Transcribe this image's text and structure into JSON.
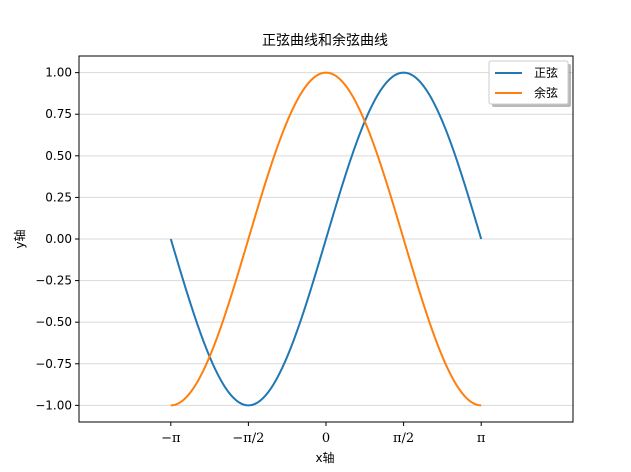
{
  "chart_data": {
    "type": "line",
    "title": "正弦曲线和余弦曲线",
    "xlabel": "x轴",
    "ylabel": "y轴",
    "xlim": [
      -5.0,
      5.0
    ],
    "ylim": [
      -1.1,
      1.1
    ],
    "grid": {
      "y": true,
      "x": false
    },
    "legend": {
      "placement": "top-right"
    },
    "x_ticks": [
      {
        "value": -3.141592653589793,
        "label": "−π"
      },
      {
        "value": -1.5707963267948966,
        "label": "−π/2"
      },
      {
        "value": 0,
        "label": "0"
      },
      {
        "value": 1.5707963267948966,
        "label": "π/2"
      },
      {
        "value": 3.141592653589793,
        "label": "π"
      }
    ],
    "y_ticks": [
      {
        "value": 1.0,
        "label": "1.00"
      },
      {
        "value": 0.75,
        "label": "0.75"
      },
      {
        "value": 0.5,
        "label": "0.50"
      },
      {
        "value": 0.25,
        "label": "0.25"
      },
      {
        "value": 0.0,
        "label": "0.00"
      },
      {
        "value": -0.25,
        "label": "−0.25"
      },
      {
        "value": -0.5,
        "label": "−0.50"
      },
      {
        "value": -0.75,
        "label": "−0.75"
      },
      {
        "value": -1.0,
        "label": "−1.00"
      }
    ],
    "series": [
      {
        "name": "正弦",
        "color": "#1f77b4",
        "function": "sin",
        "x_range": [
          -3.141592653589793,
          3.141592653589793
        ],
        "points": [
          [
            -3.1416,
            0.0
          ],
          [
            -2.618,
            -0.5
          ],
          [
            -2.0944,
            -0.866
          ],
          [
            -1.5708,
            -1.0
          ],
          [
            -1.0472,
            -0.866
          ],
          [
            -0.5236,
            -0.5
          ],
          [
            0.0,
            0.0
          ],
          [
            0.5236,
            0.5
          ],
          [
            1.0472,
            0.866
          ],
          [
            1.5708,
            1.0
          ],
          [
            2.0944,
            0.866
          ],
          [
            2.618,
            0.5
          ],
          [
            3.1416,
            0.0
          ]
        ]
      },
      {
        "name": "余弦",
        "color": "#ff7f0e",
        "function": "cos",
        "x_range": [
          -3.141592653589793,
          3.141592653589793
        ],
        "points": [
          [
            -3.1416,
            -1.0
          ],
          [
            -2.618,
            -0.866
          ],
          [
            -2.0944,
            -0.5
          ],
          [
            -1.5708,
            0.0
          ],
          [
            -1.0472,
            0.5
          ],
          [
            -0.5236,
            0.866
          ],
          [
            0.0,
            1.0
          ],
          [
            0.5236,
            0.866
          ],
          [
            1.0472,
            0.5
          ],
          [
            1.5708,
            0.0
          ],
          [
            2.0944,
            -0.5
          ],
          [
            2.618,
            -0.866
          ],
          [
            3.1416,
            -1.0
          ]
        ]
      }
    ]
  }
}
